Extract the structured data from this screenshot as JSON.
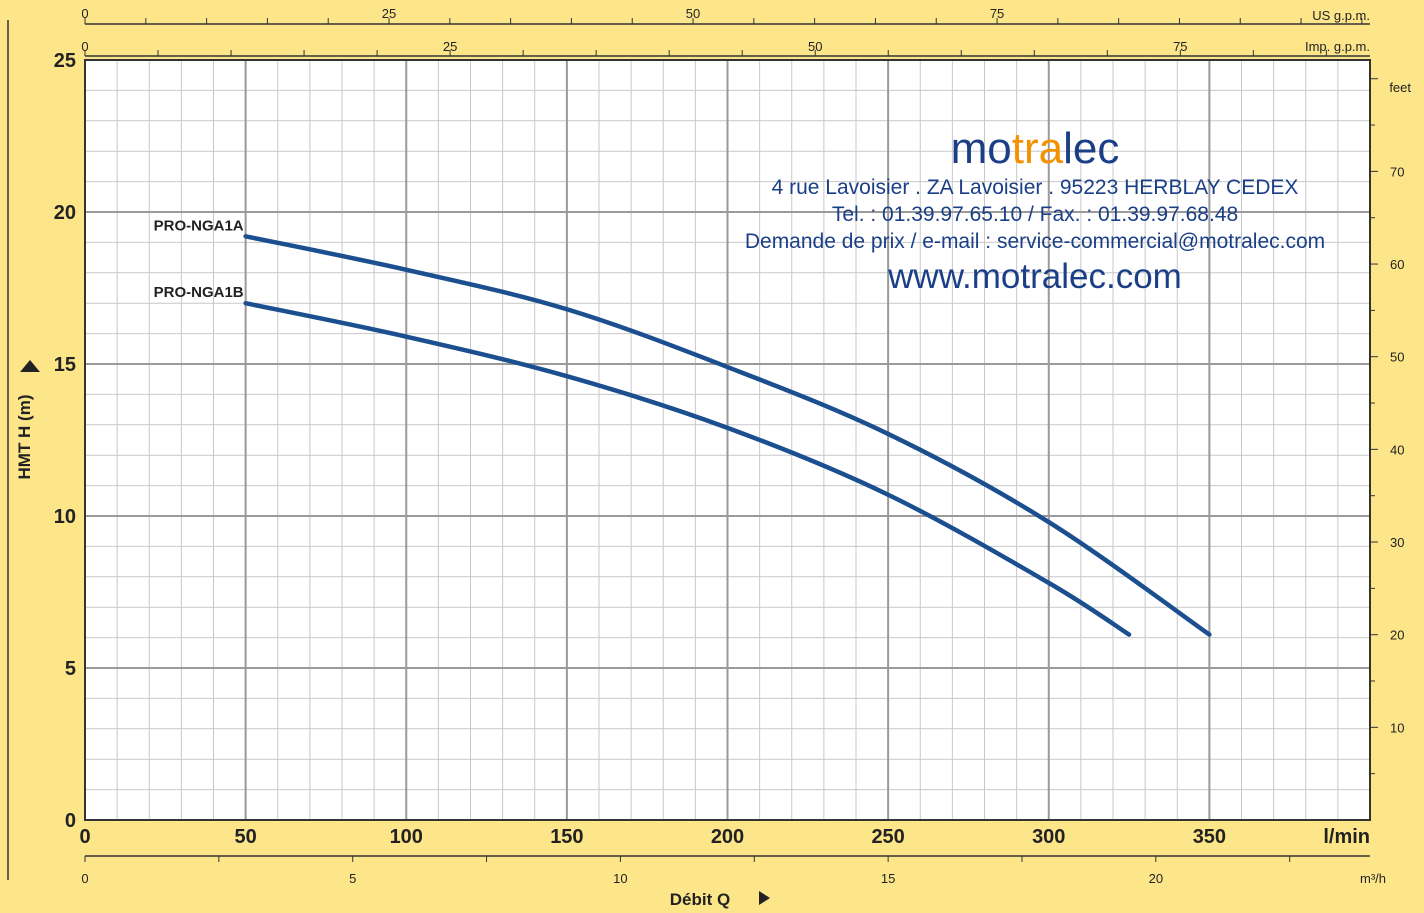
{
  "chart_data": {
    "type": "line",
    "xlabel": "Débit Q",
    "ylabel": "HMT H (m)",
    "x_unit": "l/min",
    "xlim": [
      0,
      400
    ],
    "ylim": [
      0,
      25
    ],
    "x_ticks": [
      "0",
      "50",
      "100",
      "150",
      "200",
      "250",
      "300",
      "350"
    ],
    "y_ticks": [
      "0",
      "5",
      "10",
      "15",
      "20",
      "25"
    ],
    "grid": true,
    "series": [
      {
        "name": "PRO-NGA1A",
        "color": "#1b4f8f",
        "x": [
          50,
          100,
          150,
          200,
          250,
          300,
          350
        ],
        "y": [
          19.2,
          18.1,
          16.8,
          14.9,
          12.7,
          9.8,
          6.1
        ]
      },
      {
        "name": "PRO-NGA1B",
        "color": "#1b4f8f",
        "x": [
          50,
          100,
          150,
          200,
          250,
          300,
          325
        ],
        "y": [
          17.0,
          15.9,
          14.6,
          12.9,
          10.7,
          7.8,
          6.1
        ]
      }
    ],
    "secondary_axes": {
      "us_gpm": {
        "label": "US g.p.m.",
        "ticks": [
          "0",
          "25",
          "50",
          "75"
        ]
      },
      "imp_gpm": {
        "label": "Imp. g.p.m.",
        "ticks": [
          "0",
          "25",
          "50",
          "75"
        ]
      },
      "feet": {
        "label": "feet",
        "ticks": [
          "10",
          "20",
          "30",
          "40",
          "50",
          "60",
          "70"
        ]
      },
      "m3h": {
        "label": "m³/h",
        "ticks": [
          "0",
          "5",
          "10",
          "15",
          "20"
        ]
      }
    }
  },
  "branding": {
    "logo_start": "mo",
    "logo_mid": "tra",
    "logo_end": "lec",
    "address": "4 rue Lavoisier . ZA Lavoisier . 95223 HERBLAY CEDEX",
    "phone": "Tel. : 01.39.97.65.10 / Fax. : 01.39.97.68.48",
    "email": "Demande de prix / e-mail : service-commercial@motralec.com",
    "website": "www.motralec.com"
  }
}
